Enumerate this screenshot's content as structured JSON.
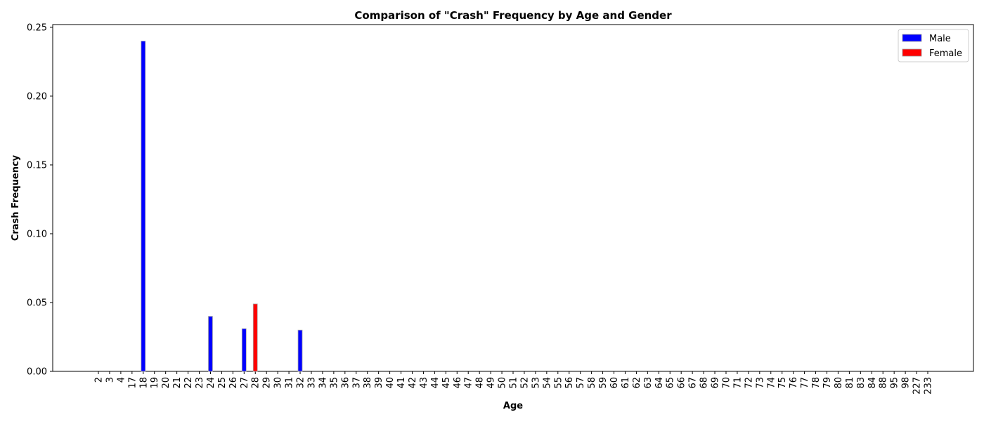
{
  "chart_data": {
    "type": "bar",
    "title": "Comparison of \"Crash\" Frequency by Age and Gender",
    "xlabel": "Age",
    "ylabel": "Crash Frequency",
    "ylim": [
      0,
      0.252
    ],
    "yticks": [
      0.0,
      0.05,
      0.1,
      0.15,
      0.2,
      0.25
    ],
    "ytick_labels": [
      "0.00",
      "0.05",
      "0.10",
      "0.15",
      "0.20",
      "0.25"
    ],
    "grid": false,
    "legend_position": "top-right",
    "categories": [
      "2",
      "3",
      "4",
      "17",
      "18",
      "19",
      "20",
      "21",
      "22",
      "23",
      "24",
      "25",
      "26",
      "27",
      "28",
      "29",
      "30",
      "31",
      "32",
      "33",
      "34",
      "35",
      "36",
      "37",
      "38",
      "39",
      "40",
      "41",
      "42",
      "43",
      "44",
      "45",
      "46",
      "47",
      "48",
      "49",
      "50",
      "51",
      "52",
      "53",
      "54",
      "55",
      "56",
      "57",
      "58",
      "59",
      "60",
      "61",
      "62",
      "63",
      "64",
      "65",
      "66",
      "67",
      "68",
      "69",
      "70",
      "71",
      "72",
      "73",
      "74",
      "75",
      "76",
      "77",
      "78",
      "79",
      "80",
      "81",
      "83",
      "84",
      "88",
      "95",
      "98",
      "227",
      "233"
    ],
    "series": [
      {
        "name": "Male",
        "color": "#0000ff",
        "values": {
          "18": 0.24,
          "24": 0.04,
          "27": 0.031,
          "32": 0.03
        }
      },
      {
        "name": "Female",
        "color": "#ff0000",
        "values": {
          "28": 0.049
        }
      }
    ]
  }
}
